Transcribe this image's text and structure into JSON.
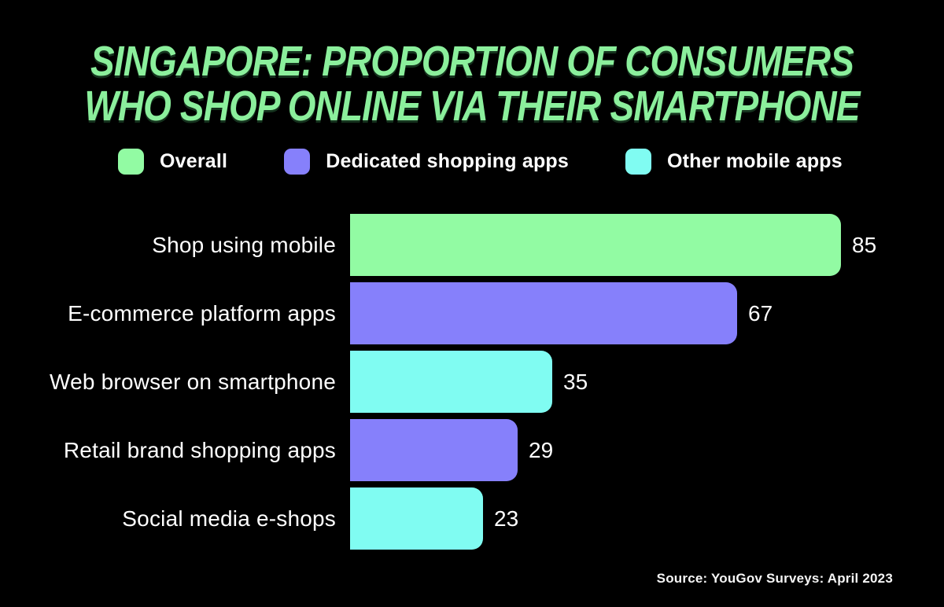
{
  "title": {
    "line1": "SINGAPORE: PROPORTION OF CONSUMERS",
    "line2": "WHO SHOP ONLINE VIA THEIR SMARTPHONE"
  },
  "legend": {
    "items": [
      {
        "label": "Overall",
        "color": "#92FBA3"
      },
      {
        "label": "Dedicated shopping apps",
        "color": "#8680FB"
      },
      {
        "label": "Other mobile apps",
        "color": "#80FCF2"
      }
    ]
  },
  "chart_data": {
    "type": "bar",
    "orientation": "horizontal",
    "title": "Singapore: proportion of consumers who shop online via their smartphone",
    "categories": [
      "Shop using mobile",
      "E-commerce platform apps",
      "Web browser on smartphone",
      "Retail brand shopping apps",
      "Social media e-shops"
    ],
    "values": [
      85,
      67,
      35,
      29,
      23
    ],
    "series_of_bar": [
      "Overall",
      "Dedicated shopping apps",
      "Other mobile apps",
      "Dedicated shopping apps",
      "Other mobile apps"
    ],
    "bar_colors": [
      "#92FBA3",
      "#8680FB",
      "#80FCF2",
      "#8680FB",
      "#80FCF2"
    ],
    "data_labels": true,
    "legend_position": "top",
    "xlim": [
      0,
      92
    ],
    "grid": false
  },
  "source": "Source: YouGov Surveys: April 2023",
  "colors": {
    "background": "#000000",
    "title_green": "#8BEF9C",
    "overall_green": "#92FBA3",
    "dedicated_purple": "#8680FB",
    "other_cyan": "#80FCF2",
    "text": "#FFFFFF"
  }
}
